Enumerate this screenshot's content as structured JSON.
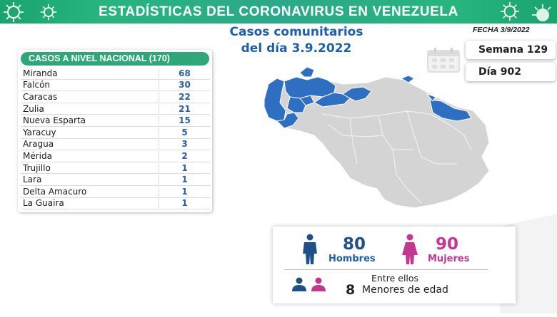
{
  "header": {
    "title": "ESTADÍSTICAS DEL CORONAVIRUS EN VENEZUELA"
  },
  "report": {
    "title_line1": "Casos comunitarios",
    "title_line2": "del día 3.9.2022",
    "fecha": "FECHA 3/9/2022",
    "semana": "Semana 129",
    "dia": "Día 902"
  },
  "table": {
    "header": "CASOS A NIVEL NACIONAL  (170)",
    "rows": [
      {
        "name": "Miranda",
        "value": "68"
      },
      {
        "name": "Falcón",
        "value": "30"
      },
      {
        "name": "Caracas",
        "value": "22"
      },
      {
        "name": "Zulia",
        "value": "21"
      },
      {
        "name": "Nueva Esparta",
        "value": "15"
      },
      {
        "name": "Yaracuy",
        "value": "5"
      },
      {
        "name": "Aragua",
        "value": "3"
      },
      {
        "name": "Mérida",
        "value": "2"
      },
      {
        "name": "Trujillo",
        "value": "1"
      },
      {
        "name": "Lara",
        "value": "1"
      },
      {
        "name": "Delta Amacuro",
        "value": "1"
      },
      {
        "name": "La Guaira",
        "value": "1"
      }
    ]
  },
  "stats": {
    "hombres_count": "80",
    "hombres_label": "Hombres",
    "mujeres_count": "90",
    "mujeres_label": "Mujeres",
    "entre_ellos": "Entre ellos",
    "menores_count": "8",
    "menores_label": "Menores de edad"
  },
  "colors": {
    "banner_green": "#27b57e",
    "title_blue": "#1f5fa6",
    "map_highlight": "#2e6fc2",
    "map_base": "#d4d4d4",
    "women_pink": "#c2378f",
    "men_navy": "#1f4f86"
  },
  "icons": {
    "calendar": "calendar-icon",
    "man": "man-icon",
    "woman": "woman-icon",
    "children": "children-icon",
    "virus": "virus-icon"
  }
}
